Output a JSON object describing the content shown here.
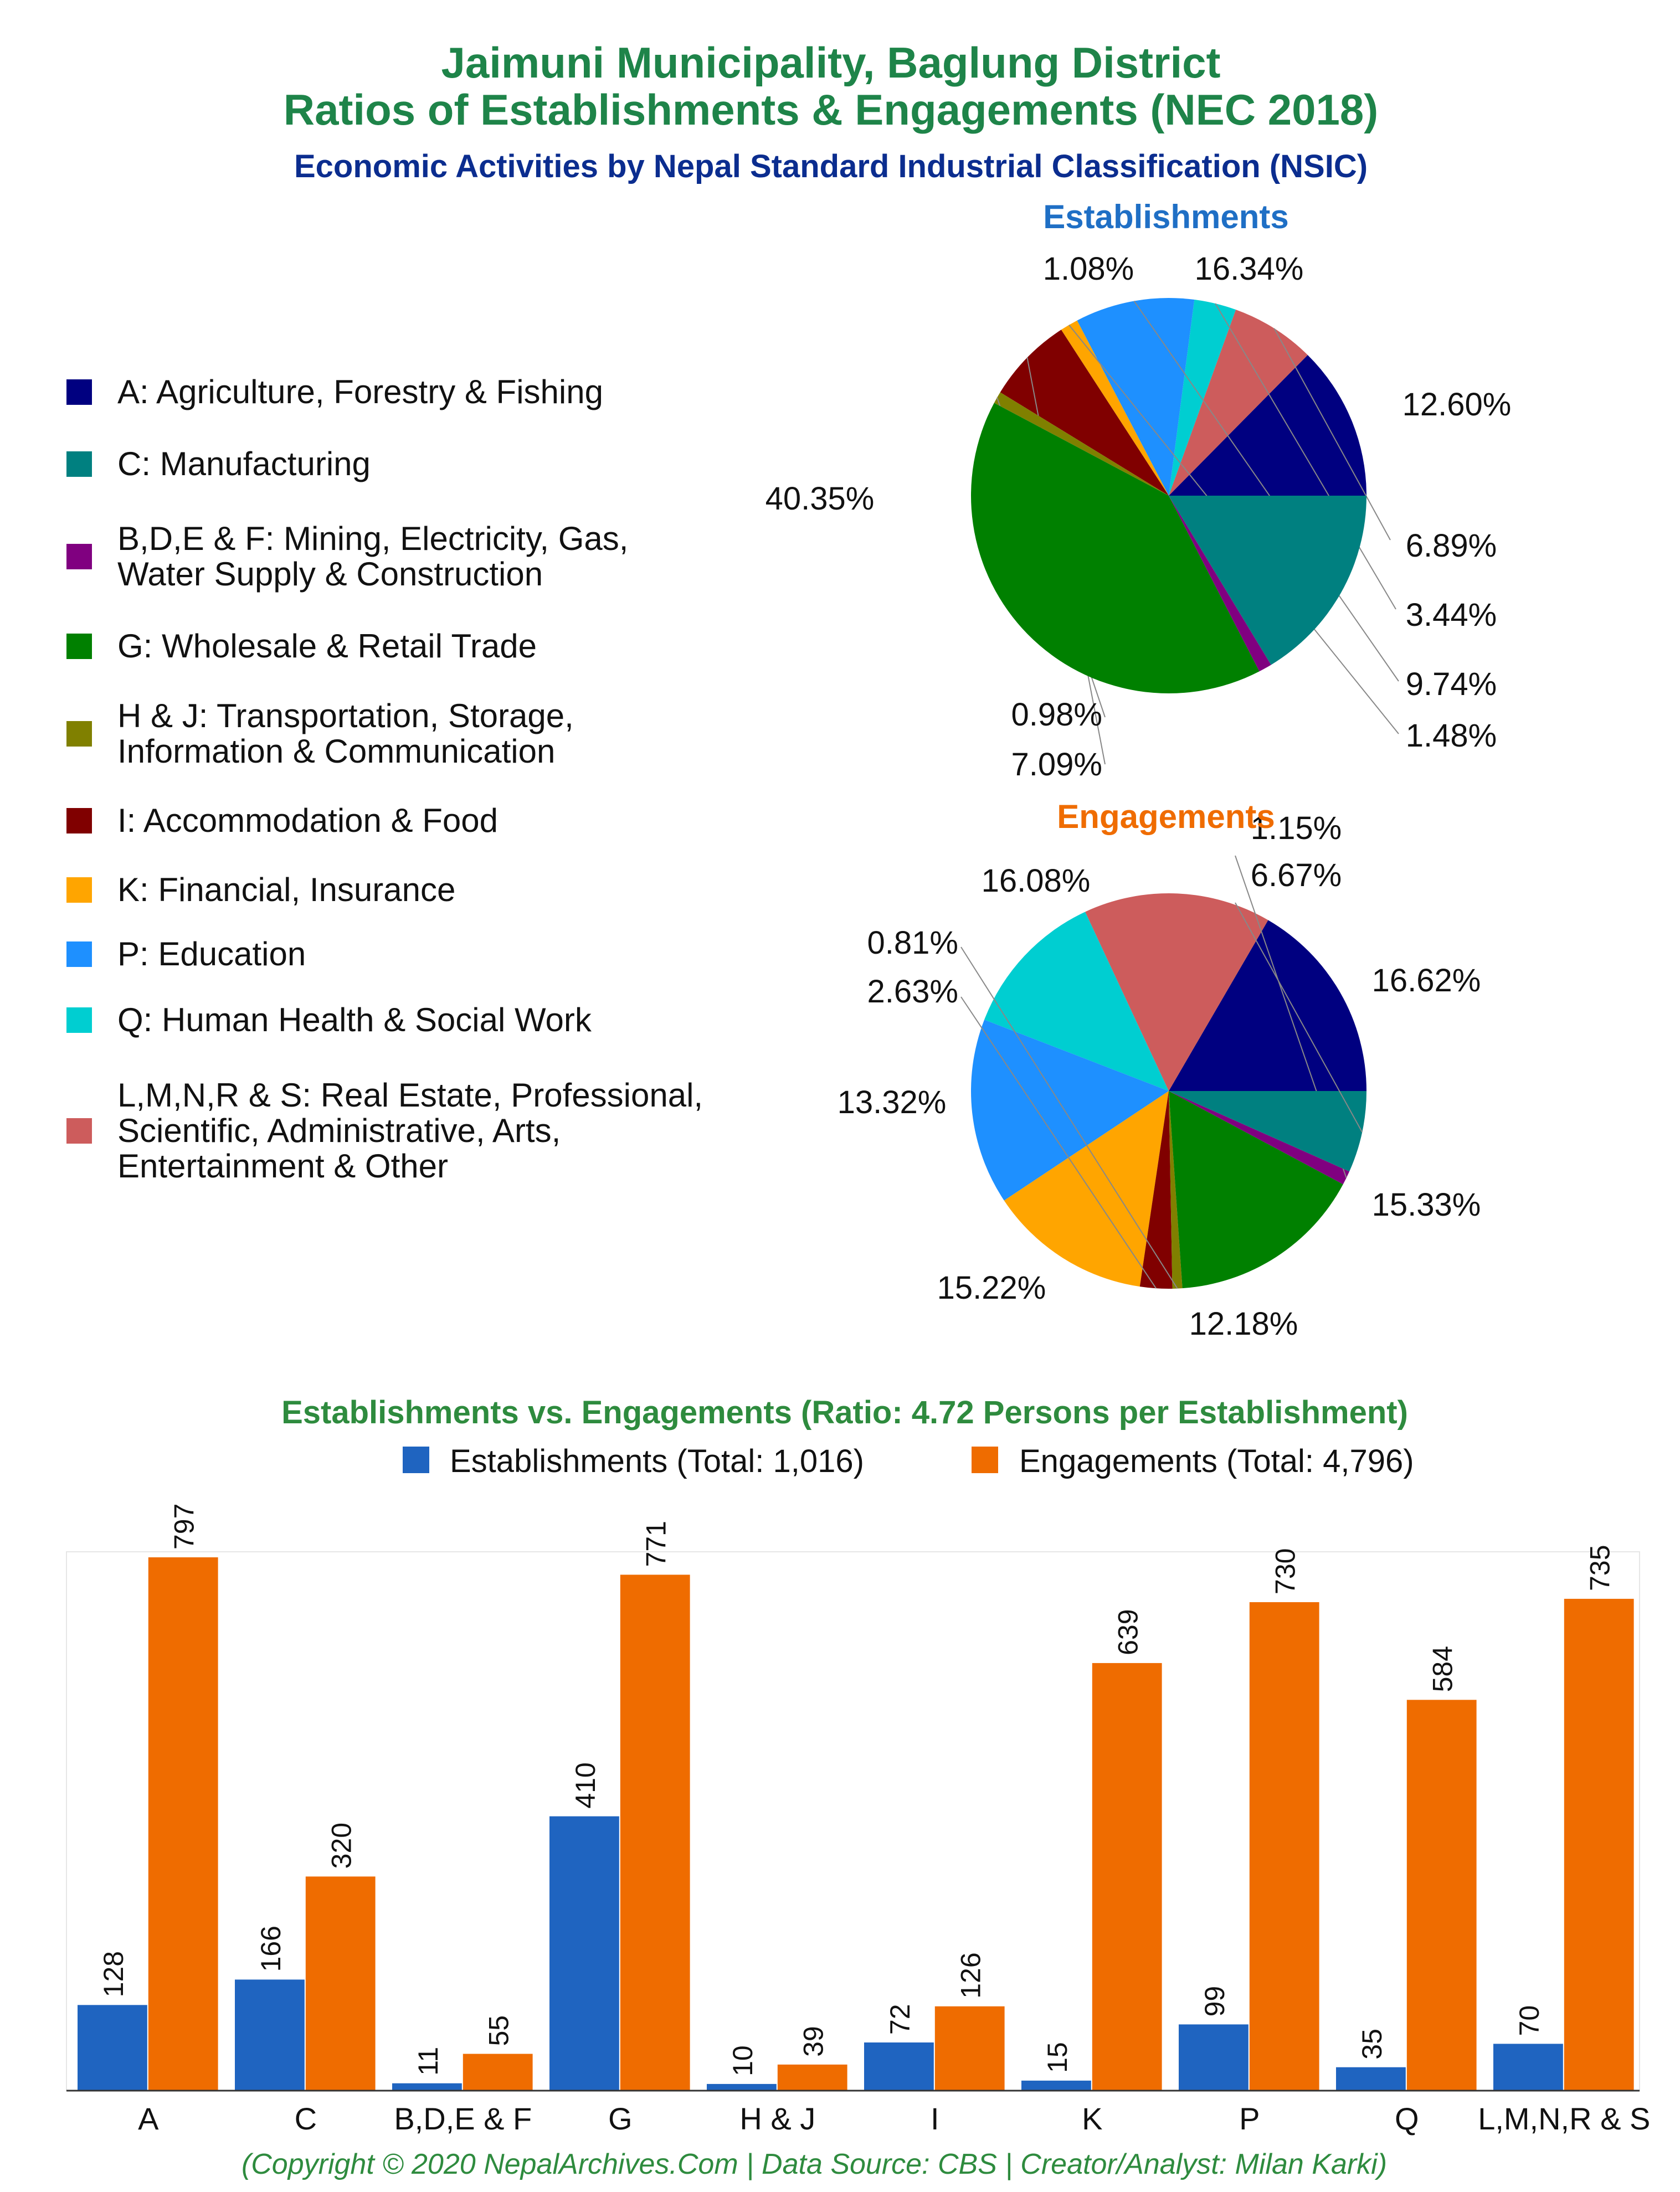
{
  "header": {
    "title_line1": "Jaimuni Municipality, Baglung District",
    "title_line2": "Ratios of Establishments & Engagements (NEC 2018)",
    "subtitle": "Economic Activities by Nepal Standard Industrial Classification (NSIC)"
  },
  "colors": {
    "title": "#1e8449",
    "subtitle": "#0b2d8f",
    "establishments_title": "#1f6fc5",
    "engagements_title": "#ef6c00",
    "bar_establishments": "#1f64c0",
    "bar_engagements": "#ef6c00"
  },
  "legend": [
    {
      "label_lines": [
        "A: Agriculture, Forestry & Fishing"
      ],
      "color": "#000080"
    },
    {
      "label_lines": [
        "C: Manufacturing"
      ],
      "color": "#008080"
    },
    {
      "label_lines": [
        "B,D,E & F: Mining, Electricity, Gas,",
        "Water Supply & Construction"
      ],
      "color": "#800080"
    },
    {
      "label_lines": [
        "G: Wholesale & Retail Trade"
      ],
      "color": "#008000"
    },
    {
      "label_lines": [
        "H & J: Transportation, Storage,",
        "Information & Communication"
      ],
      "color": "#808000"
    },
    {
      "label_lines": [
        "I: Accommodation & Food"
      ],
      "color": "#800000"
    },
    {
      "label_lines": [
        "K: Financial, Insurance"
      ],
      "color": "#ffa500"
    },
    {
      "label_lines": [
        "P: Education"
      ],
      "color": "#1e90ff"
    },
    {
      "label_lines": [
        "Q: Human Health & Social Work"
      ],
      "color": "#00ced1"
    },
    {
      "label_lines": [
        "L,M,N,R & S: Real Estate, Professional,",
        "Scientific, Administrative, Arts,",
        "Entertainment & Other"
      ],
      "color": "#cd5c5c"
    }
  ],
  "chart_data": [
    {
      "type": "pie",
      "title": "Establishments",
      "slices": [
        {
          "category": "A",
          "value": 12.6,
          "label": "12.60%",
          "color": "#000080"
        },
        {
          "category": "L,M,N,R & S",
          "value": 6.89,
          "label": "6.89%",
          "color": "#cd5c5c"
        },
        {
          "category": "Q",
          "value": 3.44,
          "label": "3.44%",
          "color": "#00ced1"
        },
        {
          "category": "P",
          "value": 9.74,
          "label": "9.74%",
          "color": "#1e90ff"
        },
        {
          "category": "K",
          "value": 1.48,
          "label": "1.48%",
          "color": "#ffa500"
        },
        {
          "category": "I",
          "value": 7.09,
          "label": "7.09%",
          "color": "#800000"
        },
        {
          "category": "H & J",
          "value": 0.98,
          "label": "0.98%",
          "color": "#808000"
        },
        {
          "category": "G",
          "value": 40.35,
          "label": "40.35%",
          "color": "#008000"
        },
        {
          "category": "B,D,E & F",
          "value": 1.08,
          "label": "1.08%",
          "color": "#800080"
        },
        {
          "category": "C",
          "value": 16.34,
          "label": "16.34%",
          "color": "#008080"
        }
      ]
    },
    {
      "type": "pie",
      "title": "Engagements",
      "slices": [
        {
          "category": "A",
          "value": 16.62,
          "label": "16.62%",
          "color": "#000080"
        },
        {
          "category": "L,M,N,R & S",
          "value": 15.33,
          "label": "15.33%",
          "color": "#cd5c5c"
        },
        {
          "category": "Q",
          "value": 12.18,
          "label": "12.18%",
          "color": "#00ced1"
        },
        {
          "category": "P",
          "value": 15.22,
          "label": "15.22%",
          "color": "#1e90ff"
        },
        {
          "category": "K",
          "value": 13.32,
          "label": "13.32%",
          "color": "#ffa500"
        },
        {
          "category": "I",
          "value": 2.63,
          "label": "2.63%",
          "color": "#800000"
        },
        {
          "category": "H & J",
          "value": 0.81,
          "label": "0.81%",
          "color": "#808000"
        },
        {
          "category": "G",
          "value": 16.08,
          "label": "16.08%",
          "color": "#008000"
        },
        {
          "category": "B,D,E & F",
          "value": 1.15,
          "label": "1.15%",
          "color": "#800080"
        },
        {
          "category": "C",
          "value": 6.67,
          "label": "6.67%",
          "color": "#008080"
        }
      ]
    },
    {
      "type": "bar",
      "title": "Establishments vs. Engagements (Ratio: 4.72 Persons per Establishment)",
      "categories": [
        "A",
        "C",
        "B,D,E & F",
        "G",
        "H & J",
        "I",
        "K",
        "P",
        "Q",
        "L,M,N,R & S"
      ],
      "series": [
        {
          "name": "Establishments (Total: 1,016)",
          "values": [
            128,
            166,
            11,
            410,
            10,
            72,
            15,
            99,
            35,
            70
          ]
        },
        {
          "name": "Engagements (Total: 4,796)",
          "values": [
            797,
            320,
            55,
            771,
            39,
            126,
            639,
            730,
            584,
            735
          ]
        }
      ],
      "ylim": [
        0,
        797
      ],
      "legend_position": "top-right"
    }
  ],
  "footer": "(Copyright © 2020 NepalArchives.Com | Data Source: CBS | Creator/Analyst: Milan Karki)"
}
